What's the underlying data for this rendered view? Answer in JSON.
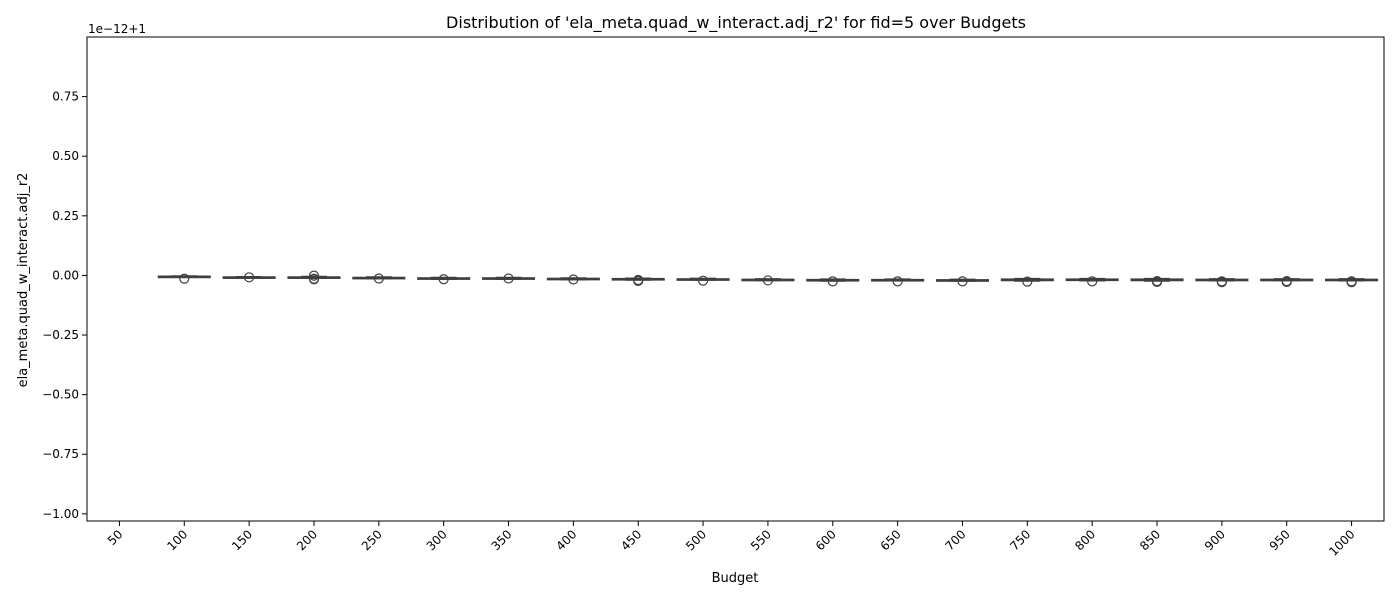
{
  "chart_data": {
    "type": "box",
    "title": "Distribution of 'ela_meta.quad_w_interact.adj_r2' for fid=5 over Budgets",
    "xlabel": "Budget",
    "ylabel": "ela_meta.quad_w_interact.adj_r2",
    "offset_label": "1e−12+1",
    "categories": [
      "50",
      "100",
      "150",
      "200",
      "250",
      "300",
      "350",
      "400",
      "450",
      "500",
      "550",
      "600",
      "650",
      "700",
      "750",
      "800",
      "850",
      "900",
      "950",
      "1000"
    ],
    "y_tick_values": [
      0.75,
      0.5,
      0.25,
      0.0,
      -0.25,
      -0.5,
      -0.75,
      -1.0
    ],
    "y_tick_labels": [
      "0.75",
      "0.50",
      "0.25",
      "0.00",
      "−0.25",
      "−0.50",
      "−0.75",
      "−1.00"
    ],
    "ylim": [
      -1.03,
      1.0
    ],
    "grid": false,
    "series": [
      {
        "boxes": [
          null,
          {
            "whislo": -0.008,
            "q1": -0.006,
            "med": -0.004,
            "q3": -0.003,
            "whishi": -0.002,
            "outliers": [
              -0.014
            ]
          },
          {
            "whislo": -0.011,
            "q1": -0.009,
            "med": -0.008,
            "q3": -0.006,
            "whishi": -0.005,
            "outliers": [
              -0.008
            ]
          },
          {
            "whislo": -0.012,
            "q1": -0.01,
            "med": -0.008,
            "q3": -0.006,
            "whishi": -0.004,
            "outliers": [
              -0.001,
              -0.014,
              -0.016
            ]
          },
          {
            "whislo": -0.014,
            "q1": -0.012,
            "med": -0.01,
            "q3": -0.008,
            "whishi": -0.006,
            "outliers": [
              -0.013
            ]
          },
          {
            "whislo": -0.016,
            "q1": -0.014,
            "med": -0.012,
            "q3": -0.01,
            "whishi": -0.008,
            "outliers": [
              -0.016
            ]
          },
          {
            "whislo": -0.016,
            "q1": -0.014,
            "med": -0.012,
            "q3": -0.01,
            "whishi": -0.008,
            "outliers": [
              -0.013
            ]
          },
          {
            "whislo": -0.018,
            "q1": -0.016,
            "med": -0.014,
            "q3": -0.012,
            "whishi": -0.01,
            "outliers": [
              -0.017
            ]
          },
          {
            "whislo": -0.02,
            "q1": -0.018,
            "med": -0.015,
            "q3": -0.013,
            "whishi": -0.011,
            "outliers": [
              -0.019,
              -0.023
            ]
          },
          {
            "whislo": -0.02,
            "q1": -0.018,
            "med": -0.016,
            "q3": -0.014,
            "whishi": -0.012,
            "outliers": [
              -0.022
            ]
          },
          {
            "whislo": -0.022,
            "q1": -0.02,
            "med": -0.018,
            "q3": -0.016,
            "whishi": -0.014,
            "outliers": [
              -0.021
            ]
          },
          {
            "whislo": -0.024,
            "q1": -0.022,
            "med": -0.019,
            "q3": -0.017,
            "whishi": -0.015,
            "outliers": [
              -0.025
            ]
          },
          {
            "whislo": -0.023,
            "q1": -0.021,
            "med": -0.019,
            "q3": -0.017,
            "whishi": -0.015,
            "outliers": [
              -0.025
            ]
          },
          {
            "whislo": -0.024,
            "q1": -0.022,
            "med": -0.02,
            "q3": -0.018,
            "whishi": -0.016,
            "outliers": [
              -0.025
            ]
          },
          {
            "whislo": -0.024,
            "q1": -0.022,
            "med": -0.02,
            "q3": -0.015,
            "whishi": -0.013,
            "outliers": [
              -0.026
            ]
          },
          {
            "whislo": -0.023,
            "q1": -0.021,
            "med": -0.019,
            "q3": -0.015,
            "whishi": -0.013,
            "outliers": [
              -0.025
            ]
          },
          {
            "whislo": -0.024,
            "q1": -0.022,
            "med": -0.02,
            "q3": -0.015,
            "whishi": -0.013,
            "outliers": [
              -0.024,
              -0.027
            ]
          },
          {
            "whislo": -0.023,
            "q1": -0.021,
            "med": -0.019,
            "q3": -0.016,
            "whishi": -0.014,
            "outliers": [
              -0.025,
              -0.028
            ]
          },
          {
            "whislo": -0.022,
            "q1": -0.02,
            "med": -0.018,
            "q3": -0.016,
            "whishi": -0.014,
            "outliers": [
              -0.024,
              -0.027
            ]
          },
          {
            "whislo": -0.023,
            "q1": -0.021,
            "med": -0.019,
            "q3": -0.016,
            "whishi": -0.014,
            "outliers": [
              -0.025,
              -0.028
            ]
          }
        ]
      }
    ],
    "colors": {
      "box_fill": "#ffffff",
      "line": "#3f3f3f",
      "axis": "#000000"
    }
  }
}
